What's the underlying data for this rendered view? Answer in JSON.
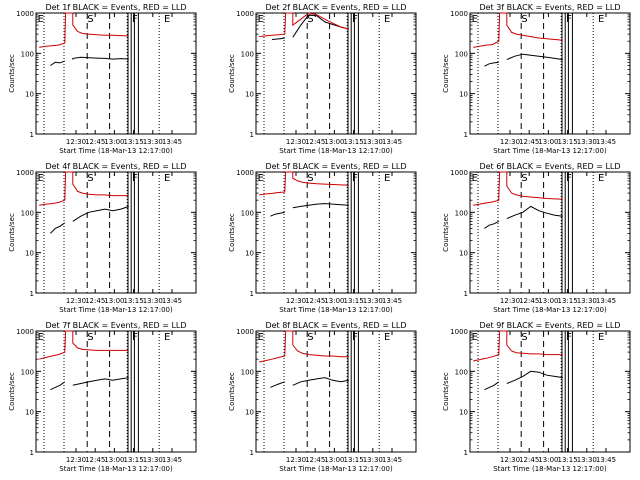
{
  "chart_data": [
    {
      "type": "line",
      "title": "Det 1f BLACK = Events, RED = LLD",
      "xlabel": "Start Time (18-Mar-13 12:17:00)",
      "ylabel": "Counts/sec",
      "xticks": [
        "12:30",
        "12:45",
        "13:00",
        "13:15",
        "13:30",
        "13:45"
      ],
      "yticks": [
        "1",
        "10",
        "100",
        "1000"
      ],
      "ylim": [
        1,
        1000
      ],
      "yscale": "log",
      "markers": [
        "E",
        "S",
        "F",
        "E"
      ],
      "series": [
        {
          "color": "#000000",
          "x": [
            0.09,
            0.12,
            0.15,
            0.18,
            0.23,
            0.23,
            0.28,
            0.33,
            0.38,
            0.43,
            0.48,
            0.53,
            0.58
          ],
          "y": [
            50,
            60,
            58,
            65,
            70,
            75,
            80,
            78,
            76,
            75,
            72,
            74,
            72
          ],
          "segments": [
            [
              0.09,
              0.18
            ],
            [
              0.23,
              0.58
            ]
          ]
        },
        {
          "color": "#cc0000",
          "x": [
            0.02,
            0.06,
            0.1,
            0.14,
            0.18,
            0.185,
            0.23,
            0.23,
            0.26,
            0.29,
            0.33,
            0.38,
            0.43,
            0.48,
            0.53,
            0.58
          ],
          "y": [
            140,
            150,
            155,
            160,
            180,
            1000,
            1000,
            500,
            350,
            310,
            300,
            290,
            280,
            280,
            275,
            270
          ]
        }
      ]
    },
    {
      "type": "line",
      "title": "Det 2f BLACK = Events, RED = LLD",
      "xlabel": "Start Time (18-Mar-13 12:17:00)",
      "ylabel": "Counts/sec",
      "xticks": [
        "12:30",
        "12:45",
        "13:00",
        "13:15",
        "13:30",
        "13:45"
      ],
      "yticks": [
        "1",
        "10",
        "100",
        "1000"
      ],
      "ylim": [
        1,
        1000
      ],
      "yscale": "log",
      "markers": [
        "E",
        "S",
        "F",
        "E"
      ],
      "series": [
        {
          "color": "#000000",
          "x": [
            0.1,
            0.15,
            0.18,
            0.23,
            0.28,
            0.33,
            0.38,
            0.43,
            0.48,
            0.53,
            0.58
          ],
          "y": [
            220,
            230,
            240,
            250,
            500,
            900,
            850,
            600,
            520,
            450,
            400
          ],
          "segments": [
            [
              0.1,
              0.18
            ],
            [
              0.23,
              0.58
            ]
          ]
        },
        {
          "color": "#cc0000",
          "x": [
            0.02,
            0.06,
            0.1,
            0.14,
            0.18,
            0.185,
            0.23,
            0.23,
            0.28,
            0.33,
            0.38,
            0.43,
            0.48,
            0.53,
            0.58
          ],
          "y": [
            260,
            270,
            280,
            290,
            300,
            1000,
            1000,
            500,
            700,
            1000,
            900,
            700,
            560,
            450,
            400
          ]
        }
      ]
    },
    {
      "type": "line",
      "title": "Det 3f BLACK = Events, RED = LLD",
      "xlabel": "Start Time (18-Mar-13 12:17:00)",
      "ylabel": "Counts/sec",
      "xticks": [
        "12:30",
        "12:45",
        "13:00",
        "13:15",
        "13:30",
        "13:45"
      ],
      "yticks": [
        "1",
        "10",
        "100",
        "1000"
      ],
      "ylim": [
        1,
        1000
      ],
      "yscale": "log",
      "markers": [
        "E",
        "S",
        "F",
        "E"
      ],
      "series": [
        {
          "color": "#000000",
          "x": [
            0.09,
            0.12,
            0.15,
            0.18,
            0.23,
            0.28,
            0.33,
            0.38,
            0.43,
            0.48,
            0.53,
            0.58
          ],
          "y": [
            48,
            55,
            58,
            60,
            70,
            85,
            95,
            90,
            85,
            80,
            75,
            70
          ],
          "segments": [
            [
              0.09,
              0.18
            ],
            [
              0.23,
              0.58
            ]
          ]
        },
        {
          "color": "#cc0000",
          "x": [
            0.02,
            0.06,
            0.1,
            0.14,
            0.18,
            0.185,
            0.23,
            0.23,
            0.26,
            0.29,
            0.33,
            0.38,
            0.43,
            0.48,
            0.53,
            0.58
          ],
          "y": [
            140,
            150,
            160,
            165,
            200,
            1000,
            1000,
            500,
            330,
            300,
            280,
            260,
            240,
            230,
            220,
            210
          ]
        }
      ]
    },
    {
      "type": "line",
      "title": "Det 4f BLACK = Events, RED = LLD",
      "xlabel": "Start Time (18-Mar-13 12:17:00)",
      "ylabel": "Counts/sec",
      "xticks": [
        "12:30",
        "12:45",
        "13:00",
        "13:15",
        "13:30",
        "13:45"
      ],
      "yticks": [
        "1",
        "10",
        "100",
        "1000"
      ],
      "ylim": [
        1,
        1000
      ],
      "yscale": "log",
      "markers": [
        "E",
        "S",
        "F",
        "E"
      ],
      "series": [
        {
          "color": "#000000",
          "x": [
            0.09,
            0.12,
            0.15,
            0.18,
            0.23,
            0.28,
            0.33,
            0.38,
            0.43,
            0.48,
            0.53,
            0.58
          ],
          "y": [
            30,
            40,
            45,
            55,
            60,
            80,
            100,
            110,
            120,
            110,
            120,
            140
          ],
          "segments": [
            [
              0.09,
              0.18
            ],
            [
              0.23,
              0.58
            ]
          ]
        },
        {
          "color": "#cc0000",
          "x": [
            0.02,
            0.06,
            0.1,
            0.14,
            0.18,
            0.185,
            0.23,
            0.23,
            0.26,
            0.29,
            0.33,
            0.38,
            0.43,
            0.48,
            0.53,
            0.58
          ],
          "y": [
            150,
            160,
            165,
            175,
            200,
            1000,
            1000,
            500,
            330,
            300,
            280,
            270,
            270,
            260,
            260,
            260
          ]
        }
      ]
    },
    {
      "type": "line",
      "title": "Det 5f BLACK = Events, RED = LLD",
      "xlabel": "Start Time (18-Mar-13 12:17:00)",
      "ylabel": "Counts/sec",
      "xticks": [
        "12:30",
        "12:45",
        "13:00",
        "13:15",
        "13:30",
        "13:45"
      ],
      "yticks": [
        "1",
        "10",
        "100",
        "1000"
      ],
      "ylim": [
        1,
        1000
      ],
      "yscale": "log",
      "markers": [
        "E",
        "S",
        "F",
        "E"
      ],
      "series": [
        {
          "color": "#000000",
          "x": [
            0.09,
            0.12,
            0.15,
            0.18,
            0.23,
            0.28,
            0.33,
            0.38,
            0.43,
            0.48,
            0.53,
            0.58
          ],
          "y": [
            80,
            90,
            95,
            100,
            130,
            140,
            150,
            160,
            165,
            160,
            155,
            150
          ],
          "segments": [
            [
              0.09,
              0.18
            ],
            [
              0.23,
              0.58
            ]
          ]
        },
        {
          "color": "#cc0000",
          "x": [
            0.02,
            0.06,
            0.1,
            0.14,
            0.18,
            0.185,
            0.23,
            0.23,
            0.26,
            0.29,
            0.33,
            0.38,
            0.43,
            0.48,
            0.53,
            0.58
          ],
          "y": [
            270,
            285,
            295,
            310,
            320,
            1000,
            1000,
            700,
            600,
            560,
            530,
            510,
            500,
            490,
            480,
            470
          ]
        }
      ]
    },
    {
      "type": "line",
      "title": "Det 6f BLACK = Events, RED = LLD",
      "xlabel": "Start Time (18-Mar-13 12:17:00)",
      "ylabel": "Counts/sec",
      "xticks": [
        "12:30",
        "12:45",
        "13:00",
        "13:15",
        "13:30",
        "13:45"
      ],
      "yticks": [
        "1",
        "10",
        "100",
        "1000"
      ],
      "ylim": [
        1,
        1000
      ],
      "yscale": "log",
      "markers": [
        "E",
        "S",
        "F",
        "E"
      ],
      "series": [
        {
          "color": "#000000",
          "x": [
            0.09,
            0.12,
            0.15,
            0.18,
            0.23,
            0.28,
            0.33,
            0.38,
            0.43,
            0.48,
            0.53,
            0.58
          ],
          "y": [
            40,
            48,
            52,
            60,
            70,
            85,
            100,
            140,
            110,
            95,
            85,
            80
          ],
          "segments": [
            [
              0.09,
              0.18
            ],
            [
              0.23,
              0.58
            ]
          ]
        },
        {
          "color": "#cc0000",
          "x": [
            0.02,
            0.06,
            0.1,
            0.14,
            0.18,
            0.185,
            0.23,
            0.23,
            0.26,
            0.29,
            0.33,
            0.38,
            0.43,
            0.48,
            0.53,
            0.58
          ],
          "y": [
            150,
            160,
            170,
            180,
            200,
            1000,
            1000,
            450,
            300,
            270,
            250,
            240,
            230,
            220,
            215,
            210
          ]
        }
      ]
    },
    {
      "type": "line",
      "title": "Det 7f BLACK = Events, RED = LLD",
      "xlabel": "Start Time (18-Mar-13 12:17:00)",
      "ylabel": "Counts/sec",
      "xticks": [
        "12:30",
        "12:45",
        "13:00",
        "13:15",
        "13:30",
        "13:45"
      ],
      "yticks": [
        "1",
        "10",
        "100",
        "1000"
      ],
      "ylim": [
        1,
        1000
      ],
      "yscale": "log",
      "markers": [
        "E",
        "S",
        "F",
        "E"
      ],
      "series": [
        {
          "color": "#000000",
          "x": [
            0.09,
            0.12,
            0.15,
            0.18,
            0.23,
            0.28,
            0.33,
            0.38,
            0.43,
            0.48,
            0.53,
            0.58
          ],
          "y": [
            35,
            40,
            45,
            55,
            45,
            50,
            55,
            60,
            65,
            60,
            65,
            70
          ],
          "segments": [
            [
              0.09,
              0.18
            ],
            [
              0.23,
              0.58
            ]
          ]
        },
        {
          "color": "#cc0000",
          "x": [
            0.02,
            0.06,
            0.1,
            0.14,
            0.18,
            0.185,
            0.23,
            0.23,
            0.26,
            0.29,
            0.33,
            0.38,
            0.43,
            0.48,
            0.53,
            0.58
          ],
          "y": [
            200,
            220,
            240,
            260,
            300,
            1000,
            1000,
            500,
            380,
            350,
            340,
            330,
            330,
            330,
            330,
            330
          ]
        }
      ]
    },
    {
      "type": "line",
      "title": "Det 8f BLACK = Events, RED = LLD",
      "xlabel": "Start Time (18-Mar-13 12:17:00)",
      "ylabel": "Counts/sec",
      "xticks": [
        "12:30",
        "12:45",
        "13:00",
        "13:15",
        "13:30",
        "13:45"
      ],
      "yticks": [
        "1",
        "10",
        "100",
        "1000"
      ],
      "ylim": [
        1,
        1000
      ],
      "yscale": "log",
      "markers": [
        "E",
        "S",
        "F",
        "E"
      ],
      "series": [
        {
          "color": "#000000",
          "x": [
            0.09,
            0.12,
            0.15,
            0.18,
            0.23,
            0.28,
            0.33,
            0.38,
            0.43,
            0.48,
            0.53,
            0.58
          ],
          "y": [
            40,
            45,
            50,
            55,
            45,
            55,
            60,
            65,
            70,
            60,
            55,
            60
          ],
          "segments": [
            [
              0.09,
              0.18
            ],
            [
              0.23,
              0.58
            ]
          ]
        },
        {
          "color": "#cc0000",
          "x": [
            0.02,
            0.06,
            0.1,
            0.14,
            0.18,
            0.185,
            0.23,
            0.23,
            0.26,
            0.29,
            0.33,
            0.38,
            0.43,
            0.48,
            0.53,
            0.58
          ],
          "y": [
            170,
            185,
            200,
            220,
            240,
            1000,
            1000,
            450,
            320,
            280,
            260,
            250,
            240,
            240,
            230,
            230
          ]
        }
      ]
    },
    {
      "type": "line",
      "title": "Det 9f BLACK = Events, RED = LLD",
      "xlabel": "Start Time (18-Mar-13 12:17:00)",
      "ylabel": "Counts/sec",
      "xticks": [
        "12:30",
        "12:45",
        "13:00",
        "13:15",
        "13:30",
        "13:45"
      ],
      "yticks": [
        "1",
        "10",
        "100",
        "1000"
      ],
      "ylim": [
        1,
        1000
      ],
      "yscale": "log",
      "markers": [
        "E",
        "S",
        "F",
        "E"
      ],
      "series": [
        {
          "color": "#000000",
          "x": [
            0.09,
            0.12,
            0.15,
            0.18,
            0.23,
            0.28,
            0.33,
            0.38,
            0.43,
            0.48,
            0.53,
            0.58
          ],
          "y": [
            35,
            40,
            45,
            55,
            50,
            60,
            75,
            100,
            95,
            80,
            75,
            70
          ],
          "segments": [
            [
              0.09,
              0.18
            ],
            [
              0.23,
              0.58
            ]
          ]
        },
        {
          "color": "#cc0000",
          "x": [
            0.02,
            0.06,
            0.1,
            0.14,
            0.18,
            0.185,
            0.23,
            0.23,
            0.26,
            0.29,
            0.33,
            0.38,
            0.43,
            0.48,
            0.53,
            0.58
          ],
          "y": [
            180,
            195,
            210,
            230,
            260,
            1000,
            1000,
            450,
            320,
            290,
            280,
            270,
            270,
            260,
            260,
            260
          ]
        }
      ]
    }
  ]
}
